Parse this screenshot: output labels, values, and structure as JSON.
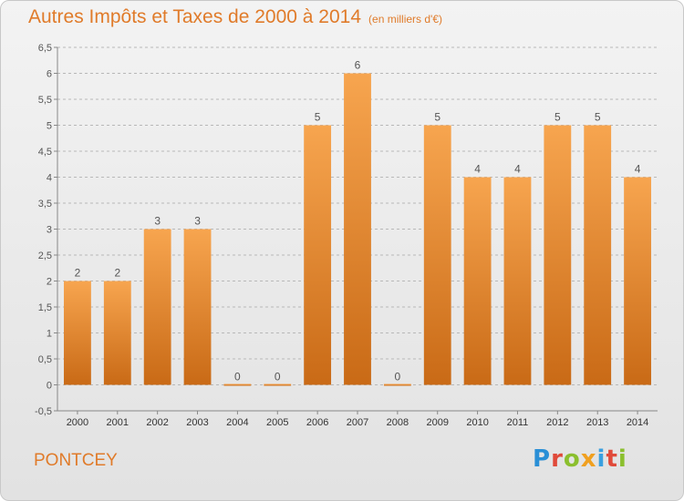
{
  "header": {
    "title": "Autres Impôts et Taxes de 2000 à 2014",
    "subtitle": "(en milliers d'€)"
  },
  "footer": {
    "place": "PONTCEY",
    "logo": "Proxiti"
  },
  "colors": {
    "accent": "#e07b2a",
    "bar_top": "#f7a54f",
    "bar_bottom": "#c96a16",
    "grid": "#b8b8b8"
  },
  "chart_data": {
    "type": "bar",
    "title": "Autres Impôts et Taxes de 2000 à 2014",
    "subtitle": "(en milliers d'€)",
    "categories": [
      "2000",
      "2001",
      "2002",
      "2003",
      "2004",
      "2005",
      "2006",
      "2007",
      "2008",
      "2009",
      "2010",
      "2011",
      "2012",
      "2013",
      "2014"
    ],
    "values": [
      2,
      2,
      3,
      3,
      0,
      0,
      5,
      6,
      0,
      5,
      4,
      4,
      5,
      5,
      4
    ],
    "data_labels": [
      "2",
      "2",
      "3",
      "3",
      "0",
      "0",
      "5",
      "6",
      "0",
      "5",
      "4",
      "4",
      "5",
      "5",
      "4"
    ],
    "ylim": [
      -0.5,
      6.5
    ],
    "yticks": [
      -0.5,
      0,
      0.5,
      1,
      1.5,
      2,
      2.5,
      3,
      3.5,
      4,
      4.5,
      5,
      5.5,
      6,
      6.5
    ],
    "ytick_labels": [
      "-0,5",
      "0",
      "0,5",
      "1",
      "1,5",
      "2",
      "2,5",
      "3",
      "3,5",
      "4",
      "4,5",
      "5",
      "5,5",
      "6",
      "6,5"
    ],
    "grid": true,
    "legend": "none",
    "xlabel": "",
    "ylabel": ""
  }
}
